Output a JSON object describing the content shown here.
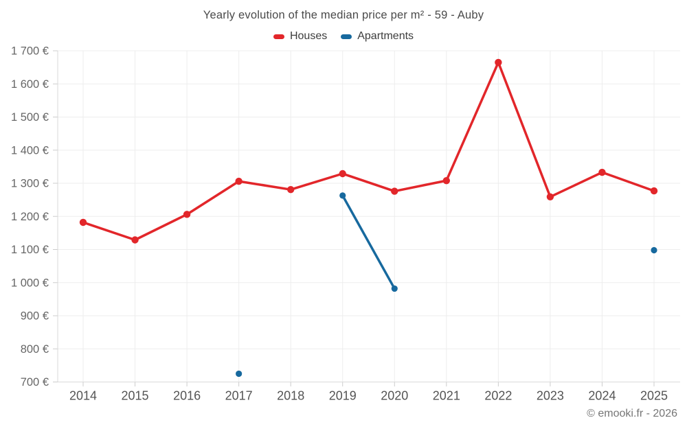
{
  "chart": {
    "title": "Yearly evolution of the median price per m² - 59 - Auby",
    "footer": "© emooki.fr - 2026"
  },
  "legend": [
    {
      "label": "Houses",
      "color": "#e2262a"
    },
    {
      "label": "Apartments",
      "color": "#17699e"
    }
  ],
  "chart_data": {
    "type": "line",
    "title": "Yearly evolution of the median price per m² - 59 - Auby",
    "categories": [
      "2014",
      "2015",
      "2016",
      "2017",
      "2018",
      "2019",
      "2020",
      "2021",
      "2022",
      "2023",
      "2024",
      "2025"
    ],
    "series": [
      {
        "name": "Houses",
        "color": "#e2262a",
        "marker_radius": 5.2,
        "values": [
          1182,
          1129,
          1206,
          1306,
          1281,
          1329,
          1276,
          1308,
          1665,
          1259,
          1333,
          1277
        ]
      },
      {
        "name": "Apartments",
        "color": "#17699e",
        "marker_radius": 4.6,
        "values": [
          null,
          null,
          null,
          725,
          null,
          1263,
          982,
          null,
          null,
          null,
          null,
          1098
        ]
      }
    ],
    "ylim": [
      700,
      1700
    ],
    "y_step": 100,
    "y_suffix": "€",
    "xlabel": "",
    "ylabel": "",
    "grid": true,
    "legend_position": "top",
    "colors": {
      "grid": "#ededed",
      "axis": "#d9d9d9",
      "tick": "#cccccc",
      "y_label_text": "#666666",
      "x_label_text": "#545454"
    }
  }
}
